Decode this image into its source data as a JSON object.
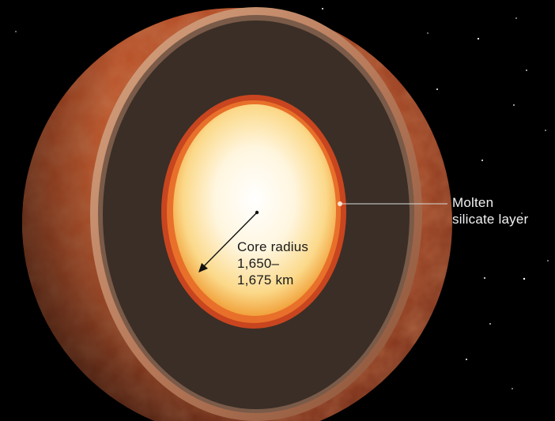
{
  "labels": {
    "molten": {
      "line1": "Molten",
      "line2": "silicate layer"
    },
    "core": {
      "line1": "Core radius",
      "line2": "1,650–",
      "line3": "1,675 km"
    }
  },
  "colors": {
    "background": "#000000",
    "planet_surface": "#b9502a",
    "planet_rim": "#c9906e",
    "mantle": "#3a2e26",
    "molten_layer": "#c8451f",
    "molten_layer_inner": "#e8702a",
    "core_center": "#ffffff",
    "core_edge": "#f6c25a",
    "annotation_line": "#d9d9d9"
  }
}
